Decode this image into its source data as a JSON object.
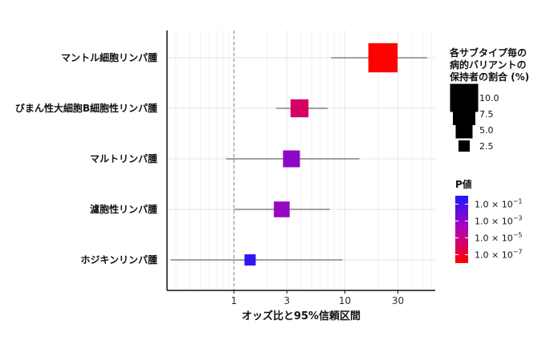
{
  "chart_data": {
    "type": "forest",
    "xlabel": "オッズ比と95%信頼区間",
    "ylabel": "",
    "x_scale": "log",
    "xlim": [
      0.25,
      65
    ],
    "x_ticks": [
      1,
      3,
      10,
      30
    ],
    "x_tick_labels": [
      "1",
      "3",
      "10",
      "30"
    ],
    "reference_line": 1,
    "grid": true,
    "categories": [
      "マントル細胞リンパ腫",
      "びまん性大細胞B細胞性リンパ腫",
      "マルトリンパ腫",
      "濾胞性リンパ腫",
      "ホジキンリンパ腫"
    ],
    "odds_ratio": [
      22,
      3.9,
      3.3,
      2.7,
      1.4
    ],
    "ci_low": [
      7.5,
      2.4,
      0.85,
      1.0,
      0.27
    ],
    "ci_high": [
      55,
      7.0,
      13.5,
      7.3,
      9.5
    ],
    "carrier_percent": [
      10.5,
      5.5,
      5.0,
      4.5,
      2.5
    ],
    "p_value_log10": [
      -8.0,
      -5.8,
      -3.0,
      -3.3,
      -0.6
    ],
    "size_legend": {
      "title_lines": [
        "各サブタイプ毎の",
        "病的バリアントの",
        "保持者の割合 (%)"
      ],
      "values": [
        10.0,
        7.5,
        5.0,
        2.5
      ],
      "labels": [
        "10.0",
        "7.5",
        "5.0",
        "2.5"
      ]
    },
    "color_legend": {
      "title": "P値",
      "scale_log10": [
        -8,
        0
      ],
      "low_color": "#ff0000",
      "high_color": "#1a1aff",
      "ticks_log10": [
        -1,
        -3,
        -5,
        -7
      ],
      "tick_base": "1.0 × 10",
      "tick_exponents": [
        "−1",
        "−3",
        "−5",
        "−7"
      ]
    }
  }
}
